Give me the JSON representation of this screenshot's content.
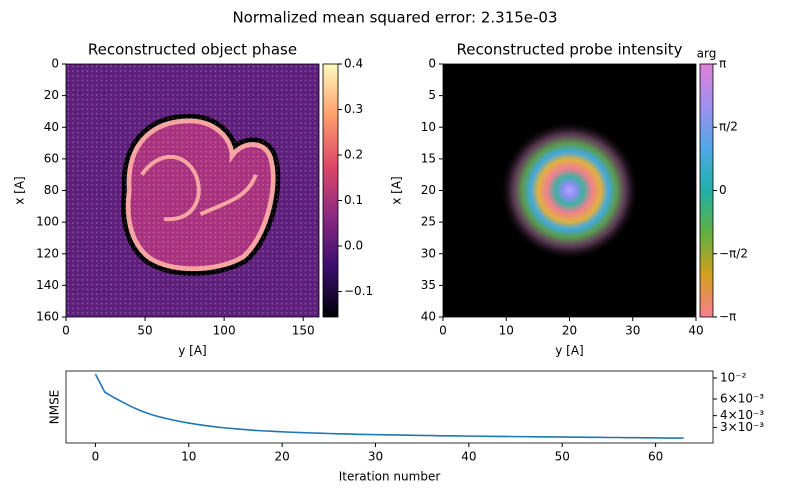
{
  "title": "Normalized mean squared error: 2.315e-03",
  "chart_data": [
    {
      "type": "image",
      "title": "Reconstructed object phase",
      "xlabel": "y [A]",
      "ylabel": "x [A]",
      "xlim": [
        0,
        160
      ],
      "ylim": [
        160,
        0
      ],
      "xticks": [
        0,
        50,
        100,
        150
      ],
      "yticks": [
        0,
        20,
        40,
        60,
        80,
        100,
        120,
        140,
        160
      ],
      "colorbar": {
        "clim": [
          -0.156,
          0.4
        ],
        "ticks": [
          {
            "value": -0.1,
            "label": "−0.1"
          },
          {
            "value": 0,
            "label": "0.0"
          },
          0.1,
          0.2,
          0.3,
          0.4
        ],
        "colormap": [
          "#000004",
          "#3b0f70",
          "#8c2981",
          "#de4968",
          "#fe9f6d",
          "#fcfdbf"
        ]
      }
    },
    {
      "type": "image",
      "title": "Reconstructed probe intensity",
      "xlabel": "y [A]",
      "ylabel": "x [A]",
      "xlim": [
        0,
        40
      ],
      "ylim": [
        40,
        0
      ],
      "xticks": [
        0,
        10,
        20,
        30,
        40
      ],
      "yticks": [
        0,
        5,
        10,
        15,
        20,
        25,
        30,
        35,
        40
      ],
      "colorbar": {
        "label": "arg",
        "clim": [
          -3.14159,
          3.14159
        ],
        "ticks": [
          {
            "value": -3.14159,
            "label": "−π"
          },
          {
            "value": -1.5708,
            "label": "−π/2"
          },
          0,
          {
            "value": 1.5708,
            "label": "π/2"
          },
          {
            "value": 3.14159,
            "label": "π"
          }
        ],
        "colormap": [
          "#f77f8f",
          "#d4a020",
          "#60b040",
          "#20b0a8",
          "#50a8e8",
          "#a090f0",
          "#e080d8"
        ]
      }
    },
    {
      "type": "line",
      "xlabel": "Iteration number",
      "ylabel": "NMSE",
      "yscale": "log",
      "yaxis_side": "right",
      "xlim": [
        -3.15,
        66.15
      ],
      "xticks": [
        0,
        10,
        20,
        30,
        40,
        50,
        60
      ],
      "ylim": [
        0.002055,
        0.01186
      ],
      "yticks": [
        {
          "value": 0.003,
          "label": "3×10⁻³"
        },
        {
          "value": 0.004,
          "label": "4×10⁻³"
        },
        {
          "value": 0.006,
          "label": "6×10⁻³"
        },
        {
          "value": 0.01,
          "label": "10⁻²"
        }
      ],
      "x": [
        0,
        1,
        2,
        3,
        4,
        5,
        6,
        7,
        8,
        9,
        10,
        11,
        12,
        13,
        14,
        15,
        16,
        17,
        18,
        19,
        20,
        21,
        22,
        23,
        24,
        25,
        26,
        27,
        28,
        29,
        30,
        31,
        32,
        33,
        34,
        35,
        36,
        37,
        38,
        39,
        40,
        41,
        42,
        43,
        44,
        45,
        46,
        47,
        48,
        49,
        50,
        51,
        52,
        53,
        54,
        55,
        56,
        57,
        58,
        59,
        60,
        61,
        62,
        63
      ],
      "series": [
        {
          "color": "#1f77b4",
          "values": [
            0.011,
            0.00711,
            0.0062,
            0.0055,
            0.0049,
            0.00445,
            0.0041,
            0.00385,
            0.00365,
            0.00348,
            0.00334,
            0.00322,
            0.00312,
            0.00303,
            0.00296,
            0.0029,
            0.00285,
            0.0028,
            0.00276,
            0.00273,
            0.0027,
            0.00267,
            0.00265,
            0.00263,
            0.00261,
            0.00259,
            0.00257,
            0.00256,
            0.00254,
            0.00253,
            0.00252,
            0.00251,
            0.0025,
            0.00249,
            0.00248,
            0.00247,
            0.00246,
            0.00245,
            0.00245,
            0.00244,
            0.00243,
            0.00243,
            0.00242,
            0.00241,
            0.00241,
            0.0024,
            0.0024,
            0.00239,
            0.00239,
            0.00238,
            0.00238,
            0.00237,
            0.00237,
            0.00236,
            0.00236,
            0.00235,
            0.00235,
            0.00234,
            0.00234,
            0.00233,
            0.00233,
            0.00232,
            0.00232,
            0.002315
          ]
        }
      ]
    }
  ]
}
